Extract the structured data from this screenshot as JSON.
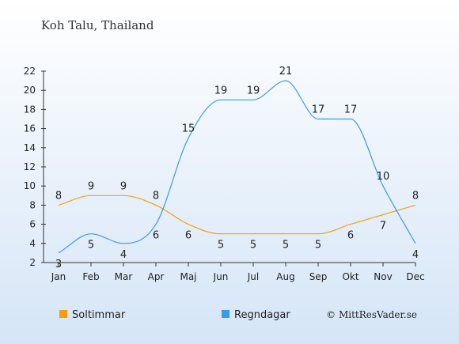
{
  "chart_data": {
    "type": "line",
    "title": "Koh Talu, Thailand",
    "categories": [
      "Jan",
      "Feb",
      "Mar",
      "Apr",
      "Maj",
      "Jun",
      "Jul",
      "Aug",
      "Sep",
      "Okt",
      "Nov",
      "Dec"
    ],
    "series": [
      {
        "name": "Soltimmar",
        "values": [
          8,
          9,
          9,
          8,
          6,
          5,
          5,
          5,
          5,
          6,
          7,
          8
        ],
        "color": "#f5a00a"
      },
      {
        "name": "Regndagar",
        "values": [
          3,
          5,
          4,
          6,
          15,
          19,
          19,
          21,
          17,
          17,
          10,
          4
        ],
        "color": "#3b9be6"
      }
    ],
    "yticks": [
      2,
      4,
      6,
      8,
      10,
      12,
      14,
      16,
      18,
      20,
      22
    ],
    "ylim": [
      2,
      22
    ],
    "grid": false,
    "legend_position": "bottom-left"
  },
  "credit": "© MittResVader.se",
  "background": {
    "top": "#ffffff",
    "bottom": "#d5e5f7"
  }
}
